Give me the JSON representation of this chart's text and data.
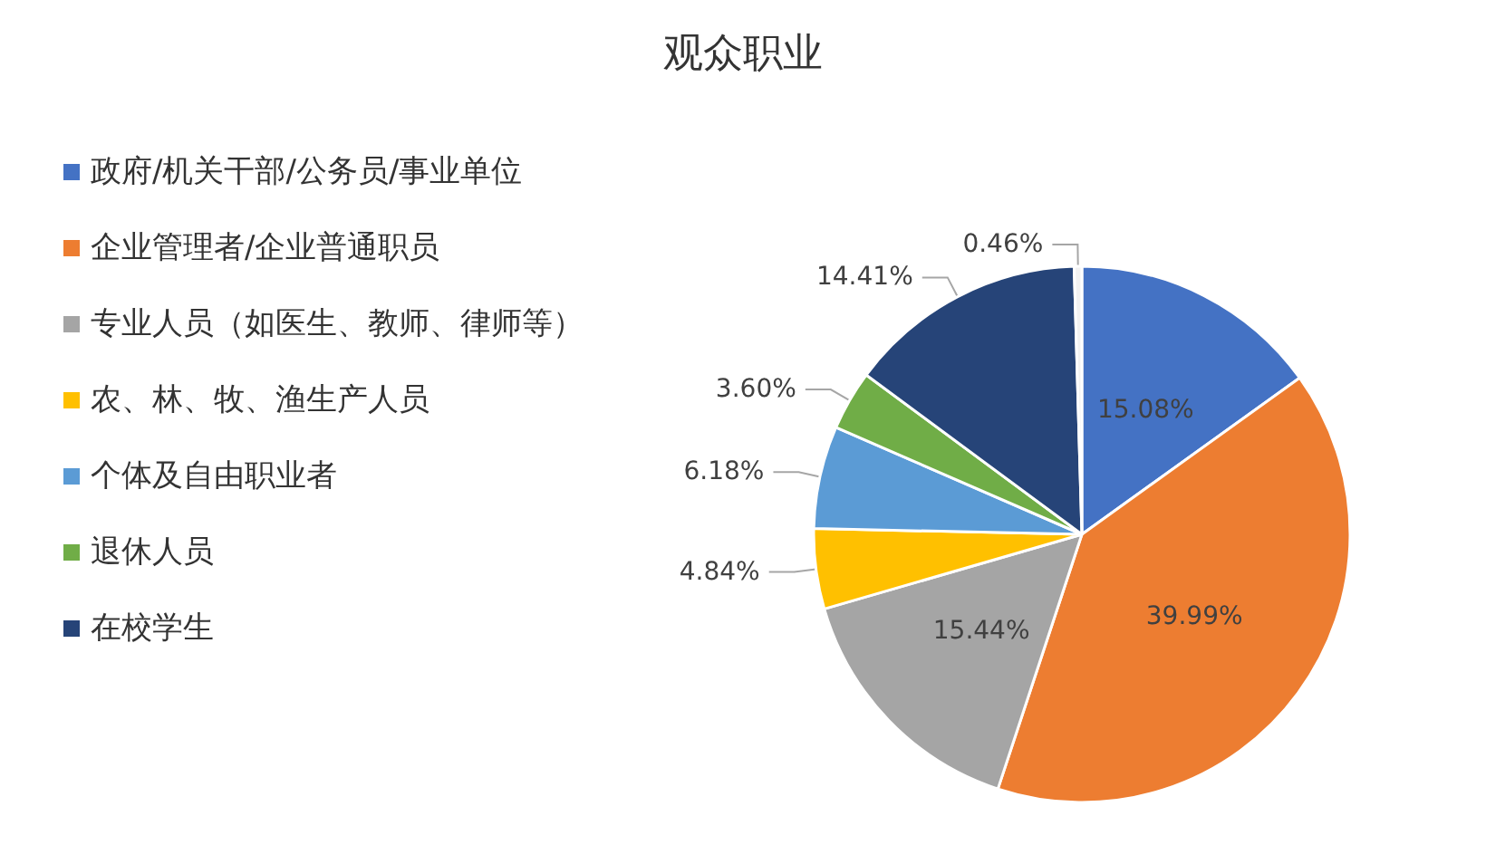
{
  "chart_data": {
    "type": "pie",
    "title": "观众职业",
    "categories": [
      "政府/机关干部/公务员/事业单位",
      "企业管理者/企业普通职员",
      "专业人员（如医生、教师、律师等）",
      "农、林、牧、渔生产人员",
      "个体及自由职业者",
      "退休人员",
      "在校学生",
      null
    ],
    "values": [
      15.08,
      39.99,
      15.44,
      4.84,
      6.18,
      3.6,
      14.41,
      0.46
    ],
    "value_labels": [
      "15.08%",
      "39.99%",
      "15.44%",
      "4.84%",
      "6.18%",
      "3.60%",
      "14.41%",
      "0.46%"
    ],
    "colors": [
      "#4472c4",
      "#ed7d31",
      "#a5a5a5",
      "#ffc000",
      "#5b9bd5",
      "#70ad47",
      "#264478",
      "#f2f2f2"
    ],
    "legend": "left"
  }
}
